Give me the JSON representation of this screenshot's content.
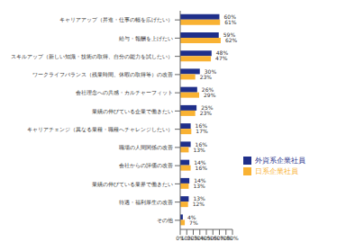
{
  "chart_data": {
    "type": "bar",
    "orientation": "horizontal",
    "categories": [
      "キャリアアップ（昇進・仕事の幅を広げたい）",
      "給与・報酬を上げたい",
      "スキルアップ（新しい知識・技術の取得、自分の能力を試したい）",
      "ワークライフバランス（残業時間、休暇の取得等）の改善",
      "会社理念への共感・カルチャーフィット",
      "業績の伸びている企業で働きたい",
      "キャリアチェンジ（異なる業種・職種へチャレンジしたい）",
      "職場の人間関係の改善",
      "会社からの評価の改善",
      "業績の伸びている業界で働きたい",
      "待遇・福利厚生の改善",
      "その他"
    ],
    "series": [
      {
        "name": "外資系企業社員",
        "color": "#1f2f8a",
        "values": [
          60,
          59,
          48,
          30,
          26,
          25,
          16,
          16,
          14,
          14,
          13,
          4
        ],
        "value_labels": [
          "60%",
          "59%",
          "48%",
          "30%",
          "26%",
          "25%",
          "16%",
          "16%",
          "14%",
          "14%",
          "13%",
          "4%"
        ]
      },
      {
        "name": "日系企業社員",
        "color": "#f9b233",
        "values": [
          61,
          62,
          47,
          23,
          29,
          23,
          17,
          13,
          16,
          13,
          12,
          7
        ],
        "value_labels": [
          "61%",
          "62%",
          "47%",
          "23%",
          "29%",
          "23%",
          "17%",
          "13%",
          "16%",
          "13%",
          "12%",
          "7%"
        ]
      }
    ],
    "xlim": [
      0,
      80
    ],
    "xticks": [
      {
        "value": 0,
        "label": "0%"
      },
      {
        "value": 10,
        "label": "10%"
      },
      {
        "value": 20,
        "label": "20%"
      },
      {
        "value": 30,
        "label": "30%"
      },
      {
        "value": 40,
        "label": "40%"
      },
      {
        "value": 50,
        "label": "50%"
      },
      {
        "value": 60,
        "label": "60%"
      },
      {
        "value": 70,
        "label": "70%"
      },
      {
        "value": 80,
        "label": "80%"
      }
    ],
    "grid": false,
    "data_labels": true,
    "legend": "lower right"
  }
}
